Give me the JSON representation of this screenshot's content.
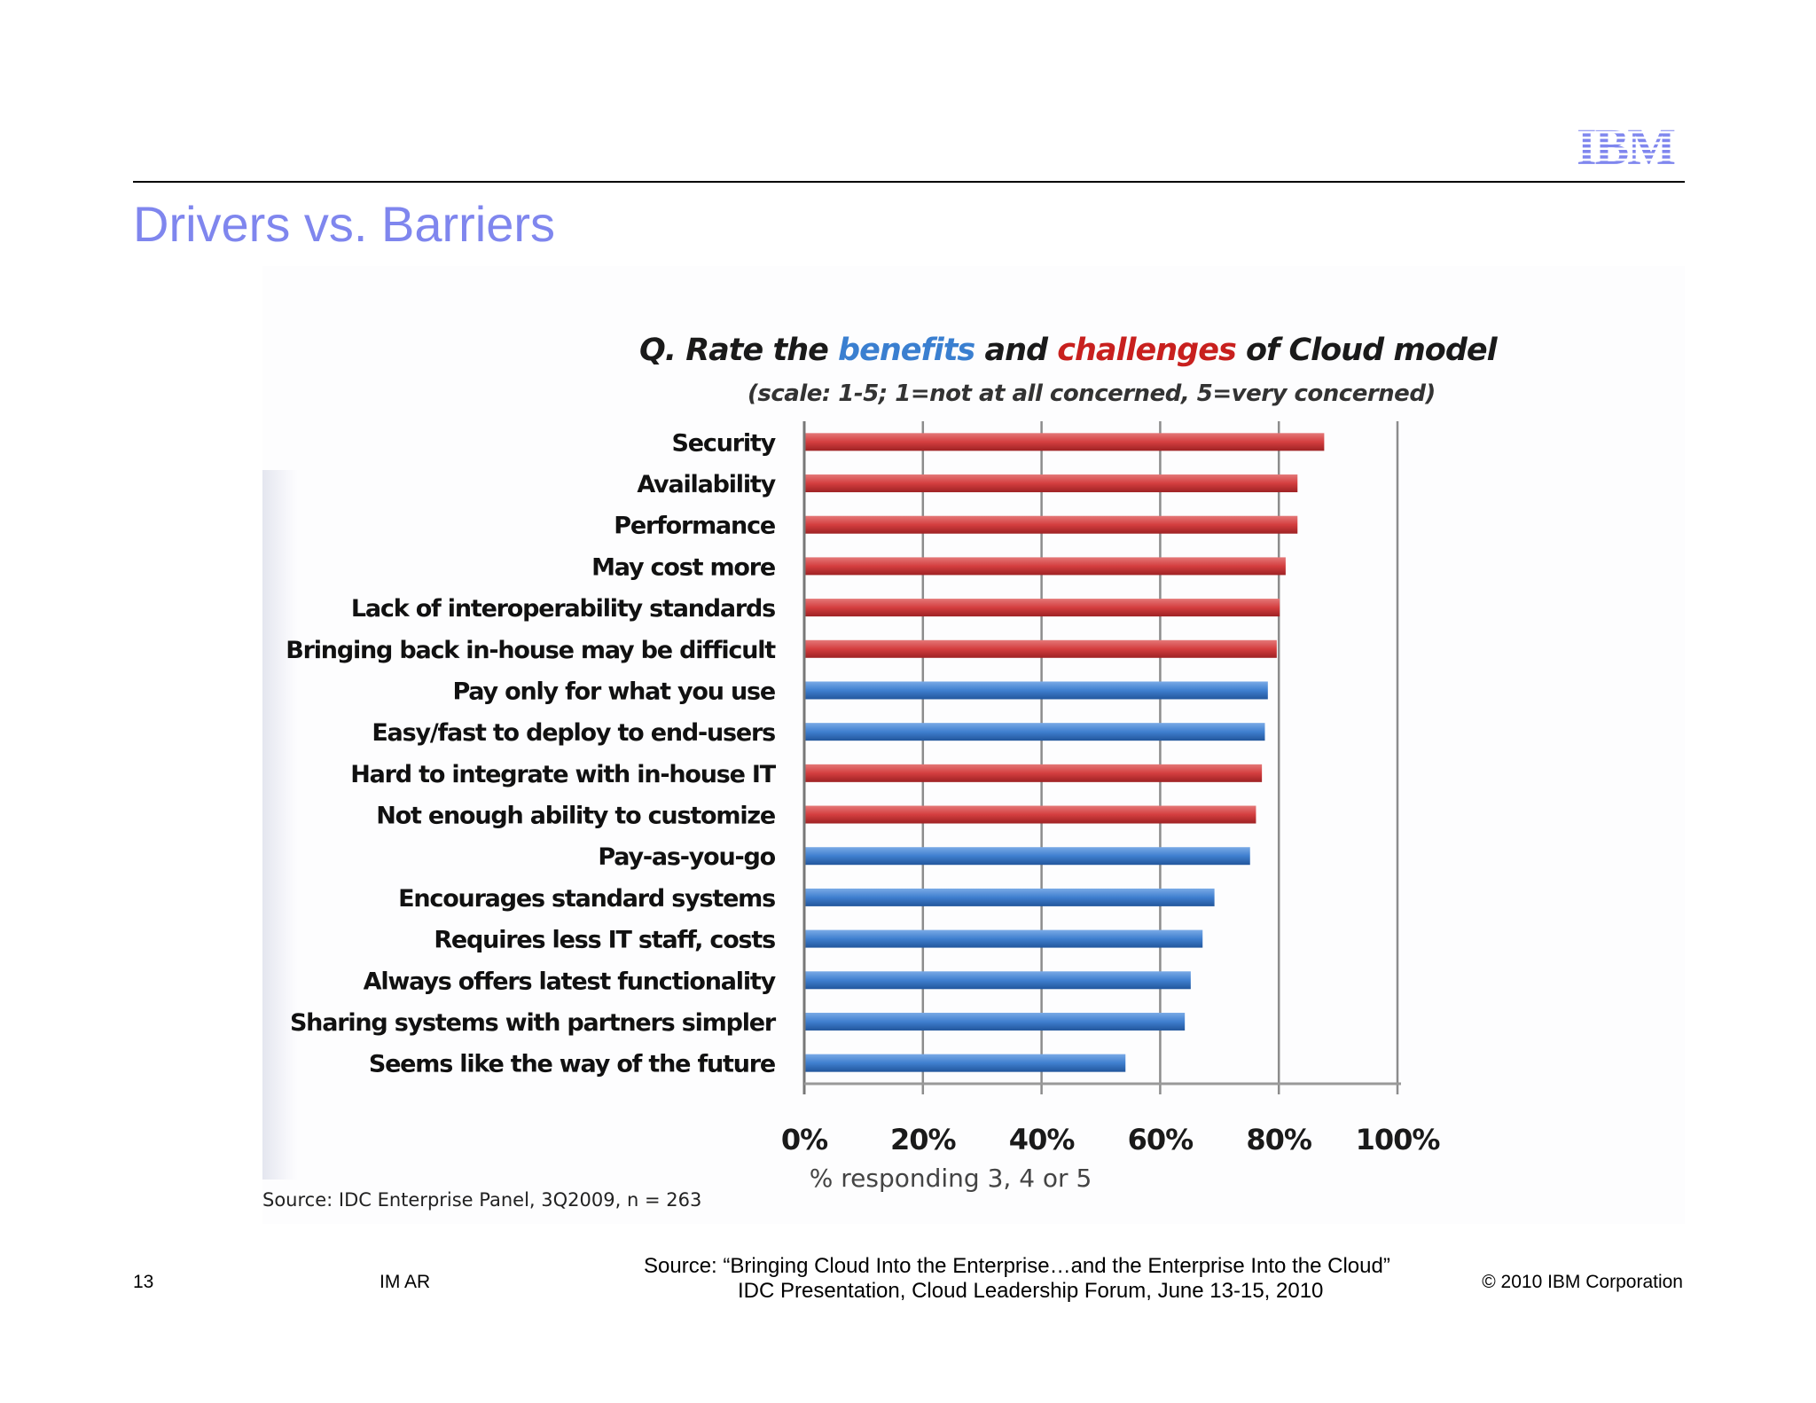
{
  "header": {
    "logo_text": "IBM",
    "logo_color": "#7f86ee",
    "title": "Drivers vs. Barriers",
    "title_color": "#7f86ee"
  },
  "chart_data": {
    "type": "bar",
    "orientation": "horizontal",
    "title_parts": [
      {
        "text": "Q. Rate the ",
        "color": "#1a1a1a"
      },
      {
        "text": "benefits",
        "color": "#3a7fd0"
      },
      {
        "text": " and ",
        "color": "#1a1a1a"
      },
      {
        "text": "challenges",
        "color": "#c8201e"
      },
      {
        "text": " of Cloud model",
        "color": "#1a1a1a"
      }
    ],
    "subtitle": "(scale: 1-5; 1=not at all concerned, 5=very concerned)",
    "xlabel": "% responding 3, 4 or 5",
    "ylabel": "",
    "xlim": [
      0,
      100
    ],
    "x_ticks": [
      "0%",
      "20%",
      "40%",
      "60%",
      "80%",
      "100%"
    ],
    "grid": "vertical",
    "legend": "none",
    "colors": {
      "challenge": "#d9484a",
      "benefit": "#3f7fcf"
    },
    "categories": [
      "Security",
      "Availability",
      "Performance",
      "May cost more",
      "Lack of interoperability standards",
      "Bringing back in-house may be difficult",
      "Pay only for what you use",
      "Easy/fast to deploy to end-users",
      "Hard to integrate with in-house IT",
      "Not enough ability to customize",
      "Pay-as-you-go",
      "Encourages standard systems",
      "Requires less IT staff, costs",
      "Always offers latest functionality",
      "Sharing systems with partners simpler",
      "Seems like the way of the future"
    ],
    "values": [
      87.5,
      83,
      83,
      81,
      80,
      79.5,
      78,
      77.5,
      77,
      76,
      75,
      69,
      67,
      65,
      64,
      54
    ],
    "kinds": [
      "challenge",
      "challenge",
      "challenge",
      "challenge",
      "challenge",
      "challenge",
      "benefit",
      "benefit",
      "challenge",
      "challenge",
      "benefit",
      "benefit",
      "benefit",
      "benefit",
      "benefit",
      "benefit"
    ],
    "source_note": "Source: IDC Enterprise Panel, 3Q2009, n = 263"
  },
  "footer": {
    "page_number": "13",
    "dept": "IM AR",
    "source_line1": "Source:  “Bringing Cloud Into the Enterprise…and the Enterprise Into the Cloud”",
    "source_line2": "IDC Presentation, Cloud Leadership Forum, June 13-15, 2010",
    "copyright": "© 2010 IBM Corporation"
  }
}
